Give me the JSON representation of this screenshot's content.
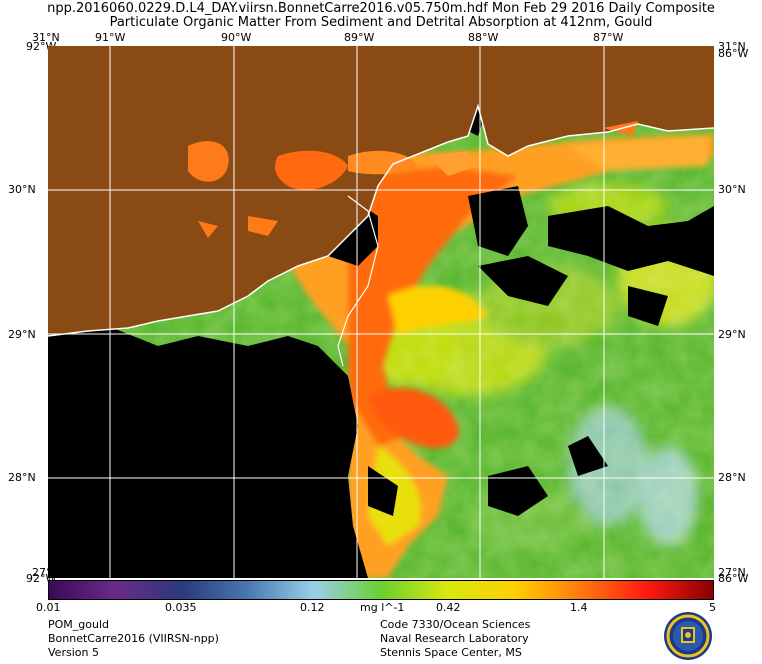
{
  "title": {
    "line1": "npp.2016060.0229.D.L4_DAY.viirsn.BonnetCarre2016.v05.750m.hdf    Mon Feb 29 2016 Daily Composite",
    "line2": "Particulate Organic Matter From Sediment and Detrital Absorption at 412nm, Gould"
  },
  "map": {
    "lon_ticks": [
      "91°W",
      "90°W",
      "89°W",
      "88°W",
      "87°W"
    ],
    "lat_ticks": [
      "30°N",
      "29°N",
      "28°N"
    ],
    "corner_top_left_lat": "31°N",
    "corner_top_left_lon": "92°W",
    "corner_top_right_lat": "31°N",
    "corner_top_right_lon": "86°W",
    "corner_bottom_left_lat": "27°N",
    "corner_bottom_left_lon": "92°W",
    "corner_bottom_right_lat": "27°N",
    "corner_bottom_right_lon": "86°W",
    "colors": {
      "land": "#8a4a14",
      "no_data": "#000000",
      "grid": "#ffffff",
      "coast": "#ffffff"
    }
  },
  "colorbar": {
    "ticks": [
      "0.01",
      "0.035",
      "0.12",
      "0.42",
      "1.4",
      "5"
    ],
    "unit": "mg l^-1",
    "scale": "log",
    "colors": [
      "#3a0a55",
      "#6a2a8a",
      "#2a3a7a",
      "#4a78b0",
      "#9ad0e8",
      "#6ad030",
      "#d8e810",
      "#ffd000",
      "#ff7a10",
      "#ff1a10",
      "#8a0000"
    ]
  },
  "footer": {
    "left": [
      "POM_gould",
      "BonnetCarre2016 (VIIRSN-npp)",
      "Version 5"
    ],
    "right": [
      "Code 7330/Ocean Sciences",
      "Naval Research Laboratory",
      "Stennis Space Center, MS"
    ]
  }
}
